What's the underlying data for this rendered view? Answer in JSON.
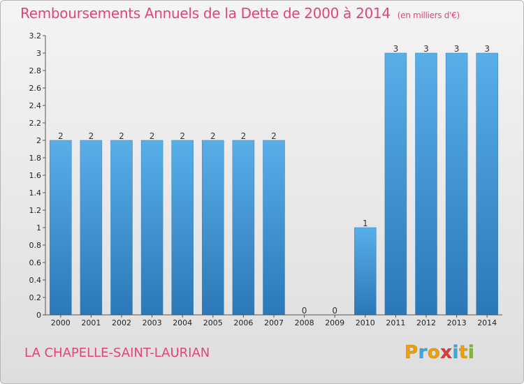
{
  "header": {
    "title": "Remboursements Annuels de la Dette de 2000 à 2014",
    "unit": "(en milliers d'€)"
  },
  "footer": {
    "place": "LA CHAPELLE-SAINT-LAURIAN",
    "logo_letters": [
      "P",
      "r",
      "o",
      "x",
      "i",
      "t",
      "i"
    ],
    "logo_colors": [
      "#f0a000",
      "#3aa8d8",
      "#f0a000",
      "#e03a3a",
      "#3aa8d8",
      "#f0a000",
      "#7cbf2a"
    ]
  },
  "chart_data": {
    "type": "bar",
    "categories": [
      "2000",
      "2001",
      "2002",
      "2003",
      "2004",
      "2005",
      "2006",
      "2007",
      "2008",
      "2009",
      "2010",
      "2011",
      "2012",
      "2013",
      "2014"
    ],
    "values": [
      2,
      2,
      2,
      2,
      2,
      2,
      2,
      2,
      0,
      0,
      1,
      3,
      3,
      3,
      3
    ],
    "data_labels": [
      "2",
      "2",
      "2",
      "2",
      "2",
      "2",
      "2",
      "2",
      "0",
      "0",
      "1",
      "3",
      "3",
      "3",
      "3"
    ],
    "y_ticks": [
      {
        "v": 0,
        "label": "0"
      },
      {
        "v": 0.2,
        "label": "0.2"
      },
      {
        "v": 0.4,
        "label": "0.4"
      },
      {
        "v": 0.6,
        "label": "0.6"
      },
      {
        "v": 0.8,
        "label": "0.8"
      },
      {
        "v": 1.0,
        "label": "1"
      },
      {
        "v": 1.2,
        "label": "1.2"
      },
      {
        "v": 1.4,
        "label": "1.4"
      },
      {
        "v": 1.6,
        "label": "1.6"
      },
      {
        "v": 1.8,
        "label": "1.8"
      },
      {
        "v": 2.0,
        "label": "2"
      },
      {
        "v": 2.2,
        "label": "2.2"
      },
      {
        "v": 2.4,
        "label": "2.4"
      },
      {
        "v": 2.6,
        "label": "2.6"
      },
      {
        "v": 2.8,
        "label": "2.8"
      },
      {
        "v": 3.0,
        "label": "3"
      },
      {
        "v": 3.2,
        "label": "3.2"
      }
    ],
    "ylim": [
      0,
      3.2
    ],
    "grid": false,
    "bar_color": "#3a92d6"
  }
}
